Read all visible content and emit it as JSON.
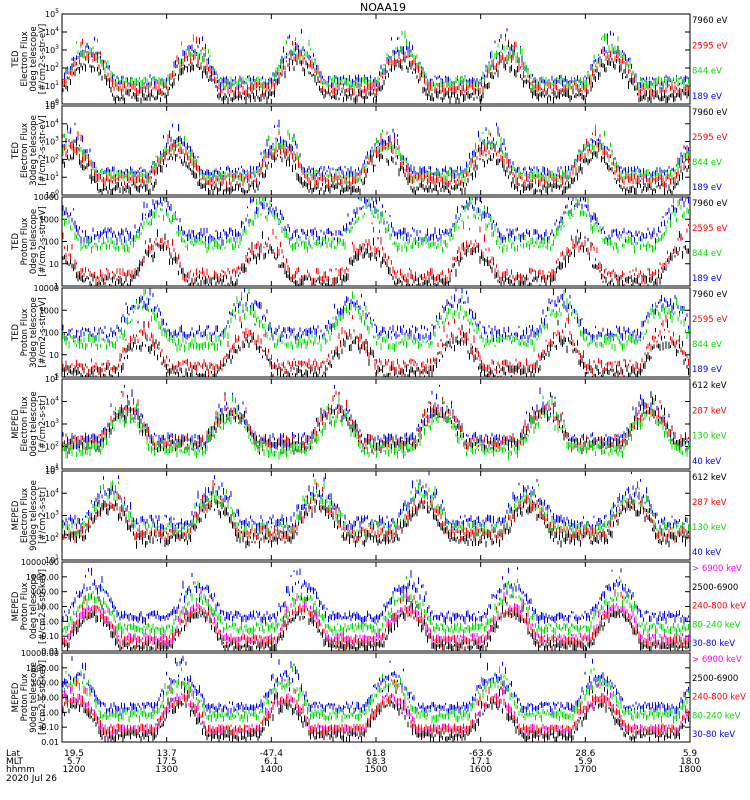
{
  "figure": {
    "title": "NOAA19",
    "date_label": "2020 Jul 26",
    "footer_row_labels": [
      "Lat",
      "MLT",
      "hhmm"
    ],
    "footer_rows": {
      "lat": [
        "19.5",
        "13.7",
        "-47.4",
        "61.8",
        "-63.6",
        "28.6",
        "5.9"
      ],
      "mlt": [
        "5.7",
        "17.5",
        "6.1",
        "18.3",
        "17.1",
        "5.9",
        "18.0"
      ],
      "hhmm": [
        "1200",
        "1300",
        "1400",
        "1500",
        "1600",
        "1700",
        "1800"
      ]
    },
    "x_range_hours": [
      12,
      18
    ]
  },
  "chart_data": [
    {
      "type": "line",
      "ylabel": [
        "TED",
        "Electron Flux",
        "0deg telescope",
        "[#/cm2-s-str-eV]"
      ],
      "yscale": "log",
      "ylim": [
        1,
        100000
      ],
      "ytick_labels": [
        "10^0",
        "10^1",
        "10^2",
        "10^3",
        "10^4",
        "10^5"
      ],
      "legend_position": "right",
      "series": [
        {
          "name": "7960 eV",
          "color": "#000000",
          "level": 0.6
        },
        {
          "name": "2595 eV",
          "color": "#ff0000",
          "level": 1.0
        },
        {
          "name": "844 eV",
          "color": "#00dd00",
          "level": 1.3
        },
        {
          "name": "189 eV",
          "color": "#0000ff",
          "level": 1.4
        }
      ]
    },
    {
      "type": "line",
      "ylabel": [
        "TED",
        "Electron Flux",
        "30deg telescope",
        "[#/cm2-s-str-eV]"
      ],
      "yscale": "log",
      "ylim": [
        1,
        100000
      ],
      "ytick_labels": [
        "10^0",
        "10^1",
        "10^2",
        "10^3",
        "10^4",
        "10^5"
      ],
      "legend_position": "right",
      "series": [
        {
          "name": "7960 eV",
          "color": "#000000",
          "level": 0.5
        },
        {
          "name": "2595 eV",
          "color": "#ff0000",
          "level": 1.0
        },
        {
          "name": "844 eV",
          "color": "#00dd00",
          "level": 1.2
        },
        {
          "name": "189 eV",
          "color": "#0000ff",
          "level": 1.4
        }
      ]
    },
    {
      "type": "line",
      "ylabel": [
        "TED",
        "Proton Flux",
        "0deg telescope",
        "[#/cm2-s-str-eV]"
      ],
      "yscale": "log",
      "ylim": [
        1,
        10000
      ],
      "ytick_labels": [
        "1",
        "10",
        "100",
        "1000",
        "10000"
      ],
      "legend_position": "right",
      "series": [
        {
          "name": "7960 eV",
          "color": "#000000",
          "level": 0.3
        },
        {
          "name": "2595 eV",
          "color": "#ff0000",
          "level": 0.6
        },
        {
          "name": "844 eV",
          "color": "#00dd00",
          "level": 2.0
        },
        {
          "name": "189 eV",
          "color": "#0000ff",
          "level": 2.4
        }
      ]
    },
    {
      "type": "line",
      "ylabel": [
        "TED",
        "Proton Flux",
        "30deg telescope",
        "[#/cm2-s-str-eV]"
      ],
      "yscale": "log",
      "ylim": [
        1,
        10000
      ],
      "ytick_labels": [
        "1",
        "10",
        "100",
        "1000",
        "10000"
      ],
      "legend_position": "right",
      "series": [
        {
          "name": "7960 eV",
          "color": "#000000",
          "level": 0.3
        },
        {
          "name": "2595 eV",
          "color": "#ff0000",
          "level": 0.6
        },
        {
          "name": "844 eV",
          "color": "#00dd00",
          "level": 1.7
        },
        {
          "name": "189 eV",
          "color": "#0000ff",
          "level": 2.1
        }
      ]
    },
    {
      "type": "line",
      "ylabel": [
        "MEPED",
        "Electron Flux",
        "0deg telescope",
        "[#/cm2-s-str]"
      ],
      "yscale": "log",
      "ylim": [
        10,
        100000
      ],
      "ytick_labels": [
        "10^1",
        "10^2",
        "10^3",
        "10^4",
        "10^5"
      ],
      "legend_position": "right",
      "series": [
        {
          "name": "612 keV",
          "color": "#000000",
          "level": 2.2
        },
        {
          "name": "287 keV",
          "color": "#ff0000",
          "level": 2.3
        },
        {
          "name": "130 keV",
          "color": "#00dd00",
          "level": 2.0
        },
        {
          "name": "40 keV",
          "color": "#0000ff",
          "level": 2.4
        }
      ]
    },
    {
      "type": "line",
      "ylabel": [
        "MEPED",
        "Electron Flux",
        "90deg telescope",
        "[#/cm2-s-str]"
      ],
      "yscale": "log",
      "ylim": [
        10,
        100000
      ],
      "ytick_labels": [
        "10^1",
        "10^2",
        "10^3",
        "10^4",
        "10^5"
      ],
      "legend_position": "right",
      "series": [
        {
          "name": "612 keV",
          "color": "#000000",
          "level": 2.1
        },
        {
          "name": "287 keV",
          "color": "#ff0000",
          "level": 2.3
        },
        {
          "name": "130 keV",
          "color": "#00dd00",
          "level": 2.5
        },
        {
          "name": "40 keV",
          "color": "#0000ff",
          "level": 2.8
        }
      ]
    },
    {
      "type": "line",
      "ylabel": [
        "MEPED",
        "Proton Flux",
        "0deg telescope",
        "[#/cm2-s-str-keV]"
      ],
      "yscale": "log",
      "ylim": [
        0.01,
        10000
      ],
      "ytick_labels": [
        "0.01",
        "0.10",
        "1.00",
        "10.00",
        "100.00",
        "1000.00",
        "10000.00"
      ],
      "legend_position": "right",
      "series": [
        {
          "name": "> 6900 keV",
          "color": "#ff00ff",
          "level": -1.0
        },
        {
          "name": "2500-6900",
          "color": "#000000",
          "level": -1.5
        },
        {
          "name": "240-800 keV",
          "color": "#ff0000",
          "level": -1.2
        },
        {
          "name": "80-240 keV",
          "color": "#00dd00",
          "level": -0.3
        },
        {
          "name": "30-80 keV",
          "color": "#0000ff",
          "level": 0.5
        }
      ]
    },
    {
      "type": "line",
      "ylabel": [
        "MEPED",
        "Proton Flux",
        "90deg telescope",
        "[#/cm2-s-str-keV]"
      ],
      "yscale": "log",
      "ylim": [
        0.01,
        10000
      ],
      "ytick_labels": [
        "0.01",
        "0.10",
        "1.00",
        "10.00",
        "100.00",
        "1000.00",
        "10000.00"
      ],
      "legend_position": "right",
      "series": [
        {
          "name": "> 6900 keV",
          "color": "#ff00ff",
          "level": -1.0
        },
        {
          "name": "2500-6900",
          "color": "#000000",
          "level": -1.4
        },
        {
          "name": "240-800 keV",
          "color": "#ff0000",
          "level": -1.0
        },
        {
          "name": "80-240 keV",
          "color": "#00dd00",
          "level": 0.0
        },
        {
          "name": "30-80 keV",
          "color": "#0000ff",
          "level": 0.5
        }
      ]
    }
  ]
}
